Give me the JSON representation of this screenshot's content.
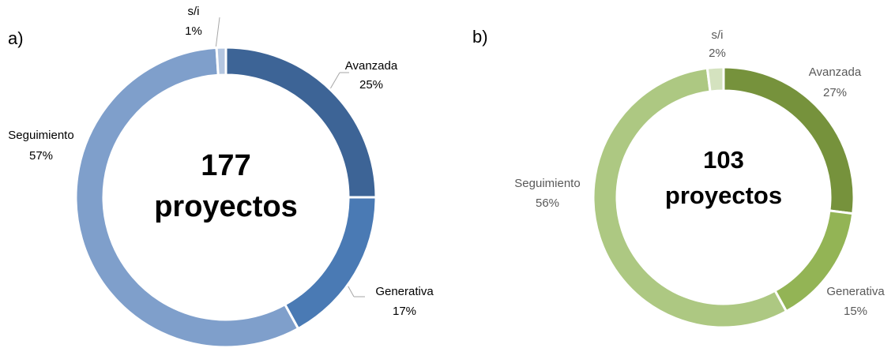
{
  "chart_data": [
    {
      "type": "donut",
      "panel": "a)",
      "total": 177,
      "center_label": "proyectos",
      "categories": [
        "Avanzada",
        "Generativa",
        "Seguimiento",
        "s/i"
      ],
      "values": [
        25,
        17,
        57,
        1
      ],
      "value_labels": [
        "25%",
        "17%",
        "57%",
        "1%"
      ],
      "colors": [
        "#3d6496",
        "#4a7ab4",
        "#7f9fcb",
        "#b4c6e0"
      ]
    },
    {
      "type": "donut",
      "panel": "b)",
      "total": 103,
      "center_label": "proyectos",
      "categories": [
        "Avanzada",
        "Generativa",
        "Seguimiento",
        "s/i"
      ],
      "values": [
        27,
        15,
        56,
        2
      ],
      "value_labels": [
        "27%",
        "15%",
        "56%",
        "2%"
      ],
      "colors": [
        "#76923c",
        "#93b455",
        "#adc882",
        "#d4e2bf"
      ]
    }
  ]
}
